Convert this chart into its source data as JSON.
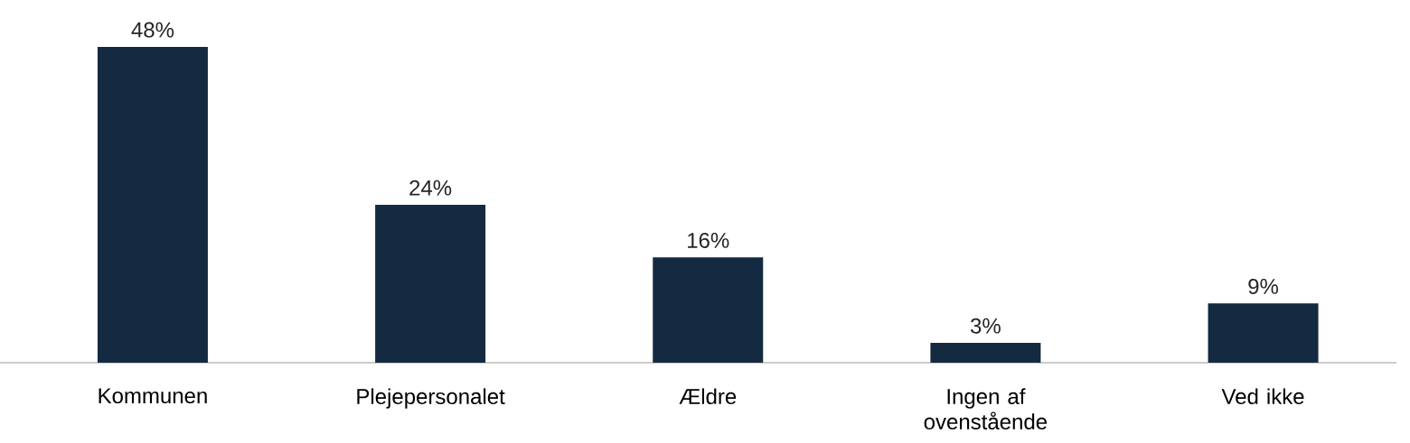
{
  "chart_data": {
    "type": "bar",
    "categories": [
      "Kommunen",
      "Plejepersonalet",
      "Ældre",
      "Ingen af ovenstående",
      "Ved ikke"
    ],
    "values": [
      48,
      24,
      16,
      3,
      9
    ],
    "value_labels": [
      "48%",
      "24%",
      "16%",
      "3%",
      "9%"
    ],
    "color": "#142a40"
  }
}
